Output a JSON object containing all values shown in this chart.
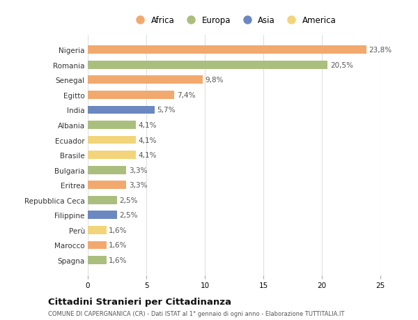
{
  "countries": [
    "Nigeria",
    "Romania",
    "Senegal",
    "Egitto",
    "India",
    "Albania",
    "Ecuador",
    "Brasile",
    "Bulgaria",
    "Eritrea",
    "Repubblica Ceca",
    "Filippine",
    "Perù",
    "Marocco",
    "Spagna"
  ],
  "values": [
    23.8,
    20.5,
    9.8,
    7.4,
    5.7,
    4.1,
    4.1,
    4.1,
    3.3,
    3.3,
    2.5,
    2.5,
    1.6,
    1.6,
    1.6
  ],
  "labels": [
    "23,8%",
    "20,5%",
    "9,8%",
    "7,4%",
    "5,7%",
    "4,1%",
    "4,1%",
    "4,1%",
    "3,3%",
    "3,3%",
    "2,5%",
    "2,5%",
    "1,6%",
    "1,6%",
    "1,6%"
  ],
  "continents": [
    "Africa",
    "Europa",
    "Africa",
    "Africa",
    "Asia",
    "Europa",
    "America",
    "America",
    "Europa",
    "Africa",
    "Europa",
    "Asia",
    "America",
    "Africa",
    "Europa"
  ],
  "colors": {
    "Africa": "#F2A96E",
    "Europa": "#AABF7E",
    "Asia": "#6B88C0",
    "America": "#F2D47A"
  },
  "xlim": [
    0,
    25
  ],
  "xticks": [
    0,
    5,
    10,
    15,
    20,
    25
  ],
  "background_color": "#ffffff",
  "title": "Cittadini Stranieri per Cittadinanza",
  "subtitle": "COMUNE DI CAPERGNANICA (CR) - Dati ISTAT al 1° gennaio di ogni anno - Elaborazione TUTTITALIA.IT",
  "bar_height": 0.55,
  "grid_color": "#e0e0e0",
  "label_fontsize": 7.5,
  "tick_fontsize": 7.5,
  "legend_order": [
    "Africa",
    "Europa",
    "Asia",
    "America"
  ]
}
